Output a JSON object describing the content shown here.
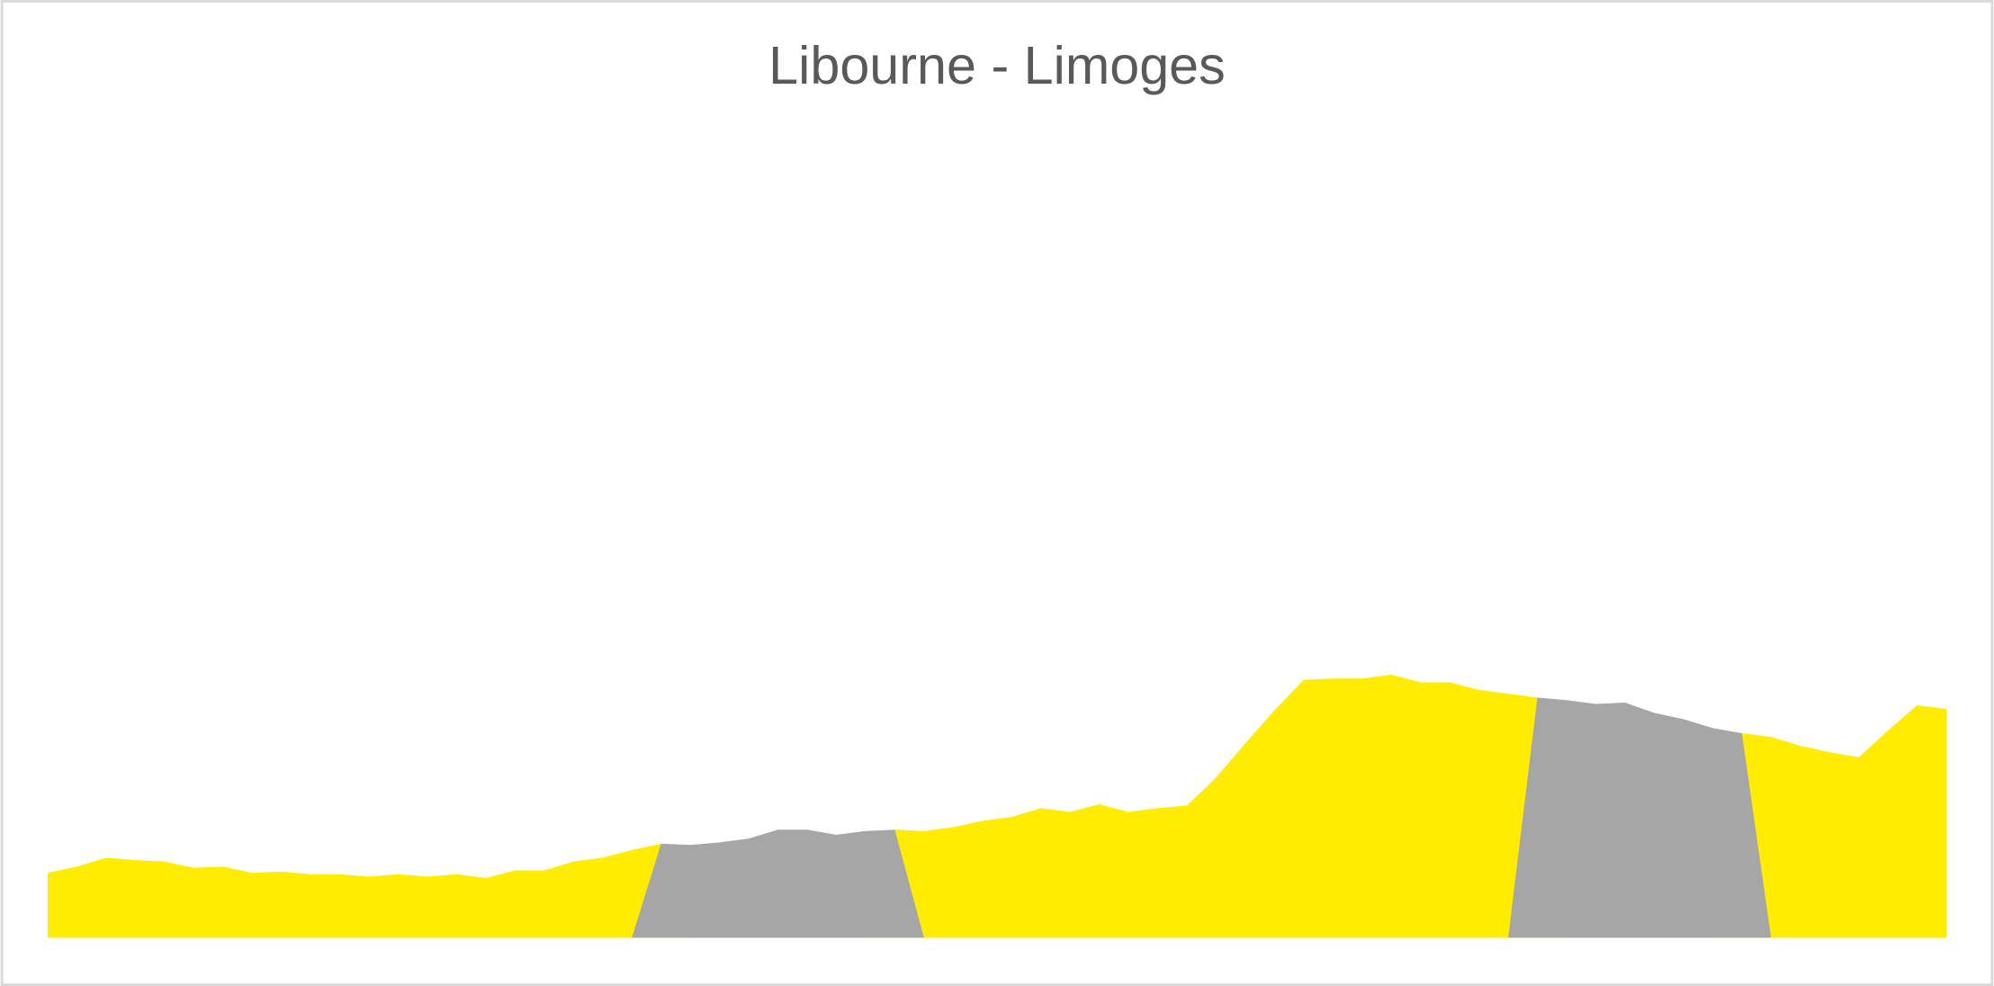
{
  "chart_data": {
    "type": "area",
    "title": "Libourne - Limoges",
    "ylim": [
      0,
      650
    ],
    "series": [
      {
        "color": "#ffec00",
        "values": [
          51,
          56,
          63,
          61,
          60,
          55,
          56,
          51,
          52,
          50,
          50,
          48,
          50,
          48,
          50,
          47,
          53,
          53,
          60,
          63,
          69,
          74,
          0,
          0,
          0,
          0,
          0,
          0,
          0,
          85,
          84,
          87,
          92,
          95,
          102,
          99,
          105,
          99,
          102,
          104,
          126,
          153,
          179,
          203,
          204,
          204,
          207,
          201,
          201,
          195,
          192,
          189,
          0,
          0,
          0,
          0,
          0,
          0,
          161,
          158,
          151,
          146,
          142,
          163,
          183,
          180
        ]
      },
      {
        "color": "#a6a6a6",
        "values": [
          null,
          null,
          null,
          null,
          null,
          null,
          null,
          null,
          null,
          null,
          null,
          null,
          null,
          null,
          null,
          null,
          null,
          null,
          null,
          null,
          0,
          74,
          73,
          75,
          78,
          85,
          85,
          81,
          84,
          85,
          0,
          null,
          null,
          null,
          null,
          null,
          null,
          null,
          null,
          null,
          null,
          null,
          null,
          null,
          null,
          null,
          null,
          null,
          null,
          null,
          0,
          189,
          187,
          184,
          185,
          177,
          172,
          165,
          161,
          0,
          null,
          null,
          null,
          null,
          null,
          null
        ]
      }
    ]
  }
}
